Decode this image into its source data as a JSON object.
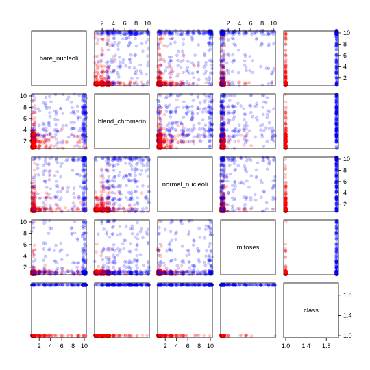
{
  "chart_data": {
    "type": "scatter",
    "layout": "pairs-matrix",
    "variables": [
      "bare_nucleoli",
      "bland_chromatin",
      "normal_nucleoli",
      "mitoses",
      "class"
    ],
    "axis_ticks": {
      "bare_nucleoli": [
        "2",
        "4",
        "6",
        "8",
        "10"
      ],
      "bland_chromatin": [
        "2",
        "4",
        "6",
        "8",
        "10"
      ],
      "normal_nucleoli": [
        "2",
        "4",
        "6",
        "8",
        "10"
      ],
      "mitoses": [
        "2",
        "4",
        "6",
        "8",
        "10"
      ],
      "class": [
        "1.0",
        "1.4",
        "1.8"
      ]
    },
    "axis_ranges": {
      "bare_nucleoli": [
        1,
        10
      ],
      "bland_chromatin": [
        1,
        10
      ],
      "normal_nucleoli": [
        1,
        10
      ],
      "mitoses": [
        1,
        10
      ],
      "class": [
        1,
        2
      ]
    },
    "groups": [
      {
        "class": 1,
        "color": "#ff0000"
      },
      {
        "class": 2,
        "color": "#0000ff"
      }
    ],
    "point_alpha": 0.2,
    "grid": false,
    "legend": "none"
  }
}
